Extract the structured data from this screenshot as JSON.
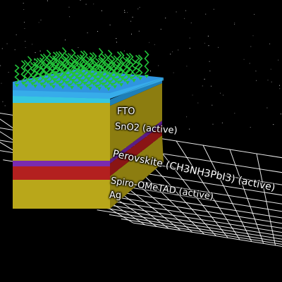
{
  "layers": [
    {
      "id": "fto",
      "label": "FTO",
      "color": "#3aa9e6"
    },
    {
      "id": "sno2",
      "label": "SnO2 (active)",
      "color": "#b9a71a"
    },
    {
      "id": "perovskite",
      "label": "Perovskite (CH3NH3PbI3) (active)",
      "color": "#7a2bb0"
    },
    {
      "id": "spiro",
      "label": "Spiro-OMeTAD (active)",
      "color": "#b3201f"
    },
    {
      "id": "ag",
      "label": "Ag",
      "color": "#b9a71a"
    }
  ],
  "colors": {
    "background": "#000000",
    "grid": "#ffffff",
    "light_rays": "#22c43a",
    "stars": "#ffffff"
  }
}
